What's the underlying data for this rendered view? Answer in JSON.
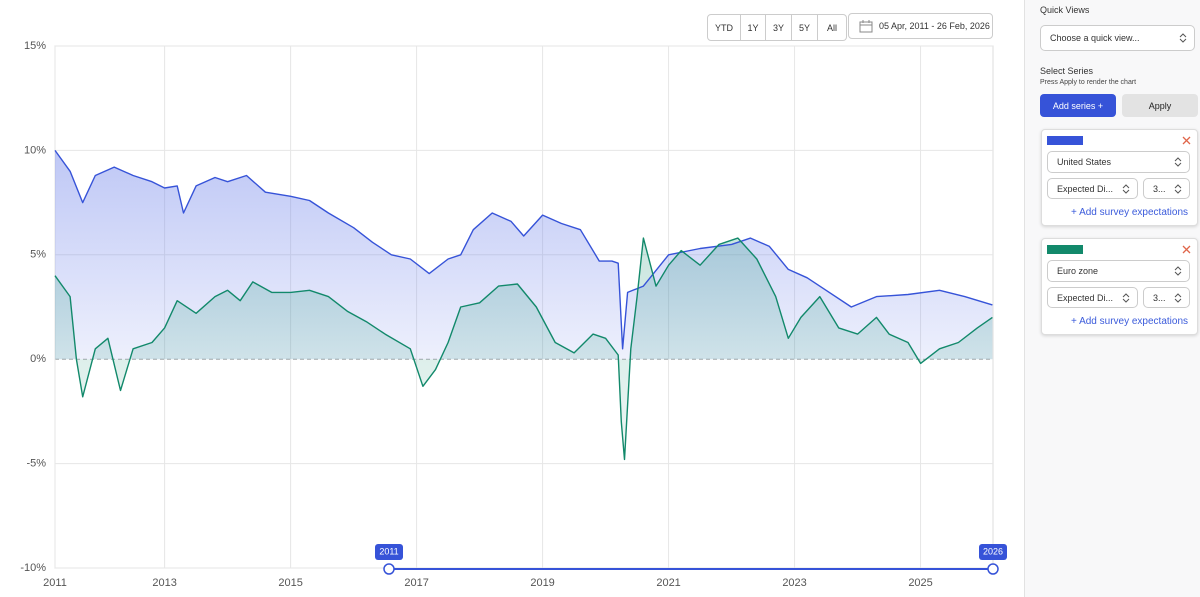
{
  "toolbar": {
    "ranges": [
      "YTD",
      "1Y",
      "3Y",
      "5Y",
      "All"
    ],
    "date_range": "05 Apr, 2011 - 26 Feb, 2026"
  },
  "sidebar": {
    "quick_views_title": "Quick Views",
    "quick_view_placeholder": "Choose a quick view...",
    "select_series_title": "Select Series",
    "select_series_hint": "Press Apply to render the chart",
    "add_series": "Add series +",
    "apply": "Apply",
    "cards": [
      {
        "measure": "Expected Di...",
        "horizon": "3...",
        "add_link": "+ Add survey expectations"
      },
      {
        "measure": "Expected Di...",
        "horizon": "3...",
        "add_link": "+ Add survey expectations"
      }
    ]
  },
  "chart_data": {
    "type": "line",
    "xlim": [
      2011.26,
      2026.15
    ],
    "xticks": [
      {
        "value": 2011.26,
        "label": "2011"
      },
      2013,
      2015,
      2017,
      2019,
      2021,
      2023,
      2025
    ],
    "ylim": [
      -10,
      15
    ],
    "yticks": [
      {
        "value": -10,
        "label": "-10%"
      },
      {
        "value": -5,
        "label": "-5%"
      },
      {
        "value": 0,
        "label": "0%"
      },
      {
        "value": 5,
        "label": "5%"
      },
      {
        "value": 10,
        "label": "10%"
      },
      {
        "value": 15,
        "label": "15%"
      }
    ],
    "grid": true,
    "series": [
      {
        "name": "United States",
        "color": "#3653d8",
        "x": [
          2011.26,
          2011.5,
          2011.7,
          2011.9,
          2012.2,
          2012.5,
          2012.8,
          2013.0,
          2013.2,
          2013.3,
          2013.5,
          2013.8,
          2014.0,
          2014.3,
          2014.6,
          2015.0,
          2015.3,
          2015.6,
          2016.0,
          2016.3,
          2016.6,
          2016.9,
          2017.2,
          2017.5,
          2017.7,
          2017.9,
          2018.2,
          2018.5,
          2018.7,
          2019.0,
          2019.3,
          2019.6,
          2019.9,
          2020.1,
          2020.2,
          2020.27,
          2020.35,
          2020.6,
          2021.0,
          2021.5,
          2022.0,
          2022.3,
          2022.6,
          2022.9,
          2023.2,
          2023.5,
          2023.9,
          2024.3,
          2024.8,
          2025.3,
          2025.7,
          2026.14
        ],
        "values": [
          10,
          9,
          7.5,
          8.8,
          9.2,
          8.8,
          8.5,
          8.2,
          8.3,
          7,
          8.3,
          8.7,
          8.5,
          8.8,
          8,
          7.8,
          7.6,
          7,
          6.3,
          5.6,
          5,
          4.8,
          4.1,
          4.8,
          5,
          6.2,
          7,
          6.6,
          5.9,
          6.9,
          6.5,
          6.2,
          4.7,
          4.7,
          4.6,
          0.5,
          3.2,
          3.5,
          5,
          5.3,
          5.5,
          5.8,
          5.4,
          4.3,
          3.9,
          3.3,
          2.5,
          3,
          3.1,
          3.3,
          3,
          2.6
        ]
      },
      {
        "name": "Euro zone",
        "color": "#12896b",
        "x": [
          2011.26,
          2011.5,
          2011.6,
          2011.7,
          2011.9,
          2012.1,
          2012.3,
          2012.5,
          2012.8,
          2013.0,
          2013.2,
          2013.5,
          2013.8,
          2014.0,
          2014.2,
          2014.4,
          2014.7,
          2015.0,
          2015.3,
          2015.6,
          2015.9,
          2016.2,
          2016.5,
          2016.9,
          2017.1,
          2017.3,
          2017.5,
          2017.7,
          2018.0,
          2018.3,
          2018.6,
          2018.9,
          2019.2,
          2019.5,
          2019.8,
          2020.0,
          2020.2,
          2020.25,
          2020.3,
          2020.4,
          2020.5,
          2020.6,
          2020.8,
          2021.0,
          2021.2,
          2021.5,
          2021.8,
          2022.1,
          2022.4,
          2022.7,
          2022.9,
          2023.1,
          2023.4,
          2023.7,
          2024.0,
          2024.3,
          2024.5,
          2024.8,
          2025.0,
          2025.3,
          2025.6,
          2025.9,
          2026.14
        ],
        "values": [
          4,
          3,
          0,
          -1.8,
          0.5,
          1,
          -1.5,
          0.5,
          0.8,
          1.5,
          2.8,
          2.2,
          3,
          3.3,
          2.8,
          3.7,
          3.2,
          3.2,
          3.3,
          3,
          2.3,
          1.8,
          1.2,
          0.5,
          -1.3,
          -0.5,
          0.8,
          2.5,
          2.7,
          3.5,
          3.6,
          2.5,
          0.8,
          0.3,
          1.2,
          1,
          0.2,
          -3,
          -4.8,
          0.5,
          3,
          5.8,
          3.5,
          4.5,
          5.2,
          4.5,
          5.5,
          5.8,
          4.8,
          3,
          1,
          2,
          3,
          1.5,
          1.2,
          2,
          1.2,
          0.8,
          -0.2,
          0.5,
          0.8,
          1.5,
          2
        ]
      }
    ],
    "navigator": {
      "start_label": "2011",
      "end_label": "2026"
    }
  }
}
